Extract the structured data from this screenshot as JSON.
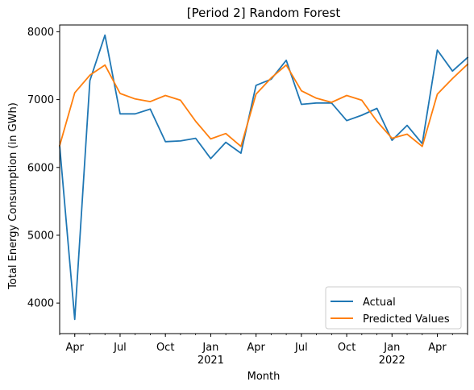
{
  "chart_data": {
    "type": "line",
    "title": "[Period 2] Random Forest",
    "xlabel": "Month",
    "ylabel": "Total Energy Consumption (in GWh)",
    "x": [
      "2020-03",
      "2020-04",
      "2020-05",
      "2020-06",
      "2020-07",
      "2020-08",
      "2020-09",
      "2020-10",
      "2020-11",
      "2020-12",
      "2021-01",
      "2021-02",
      "2021-03",
      "2021-04",
      "2021-05",
      "2021-06",
      "2021-07",
      "2021-08",
      "2021-09",
      "2021-10",
      "2021-11",
      "2021-12",
      "2022-01",
      "2022-02",
      "2022-03",
      "2022-04",
      "2022-05",
      "2022-06"
    ],
    "xlim": [
      "2020-03",
      "2022-06"
    ],
    "ylim": [
      3550,
      8100
    ],
    "yticks": [
      4000,
      5000,
      6000,
      7000,
      8000
    ],
    "xticks": [
      {
        "x": "2020-04",
        "label": "Apr",
        "sublabel": ""
      },
      {
        "x": "2020-07",
        "label": "Jul",
        "sublabel": ""
      },
      {
        "x": "2020-10",
        "label": "Oct",
        "sublabel": ""
      },
      {
        "x": "2021-01",
        "label": "Jan",
        "sublabel": "2021"
      },
      {
        "x": "2021-04",
        "label": "Apr",
        "sublabel": ""
      },
      {
        "x": "2021-07",
        "label": "Jul",
        "sublabel": ""
      },
      {
        "x": "2021-10",
        "label": "Oct",
        "sublabel": ""
      },
      {
        "x": "2022-01",
        "label": "Jan",
        "sublabel": "2022"
      },
      {
        "x": "2022-04",
        "label": "Apr",
        "sublabel": ""
      }
    ],
    "grid": false,
    "legend_position": "bottom-right",
    "series": [
      {
        "name": "Actual",
        "color": "#1f77b4",
        "values": [
          6320,
          3760,
          7280,
          7950,
          6790,
          6790,
          6860,
          6380,
          6390,
          6430,
          6130,
          6370,
          6210,
          7210,
          7300,
          7580,
          6930,
          6950,
          6950,
          6690,
          6770,
          6870,
          6400,
          6620,
          6350,
          7730,
          7420,
          7620
        ]
      },
      {
        "name": "Predicted Values",
        "color": "#ff7f0e",
        "values": [
          6320,
          7100,
          7360,
          7510,
          7090,
          7010,
          6970,
          7060,
          6990,
          6680,
          6420,
          6500,
          6310,
          7080,
          7320,
          7510,
          7130,
          7020,
          6960,
          7060,
          6990,
          6680,
          6430,
          6490,
          6310,
          7080,
          7310,
          7520
        ]
      }
    ]
  }
}
